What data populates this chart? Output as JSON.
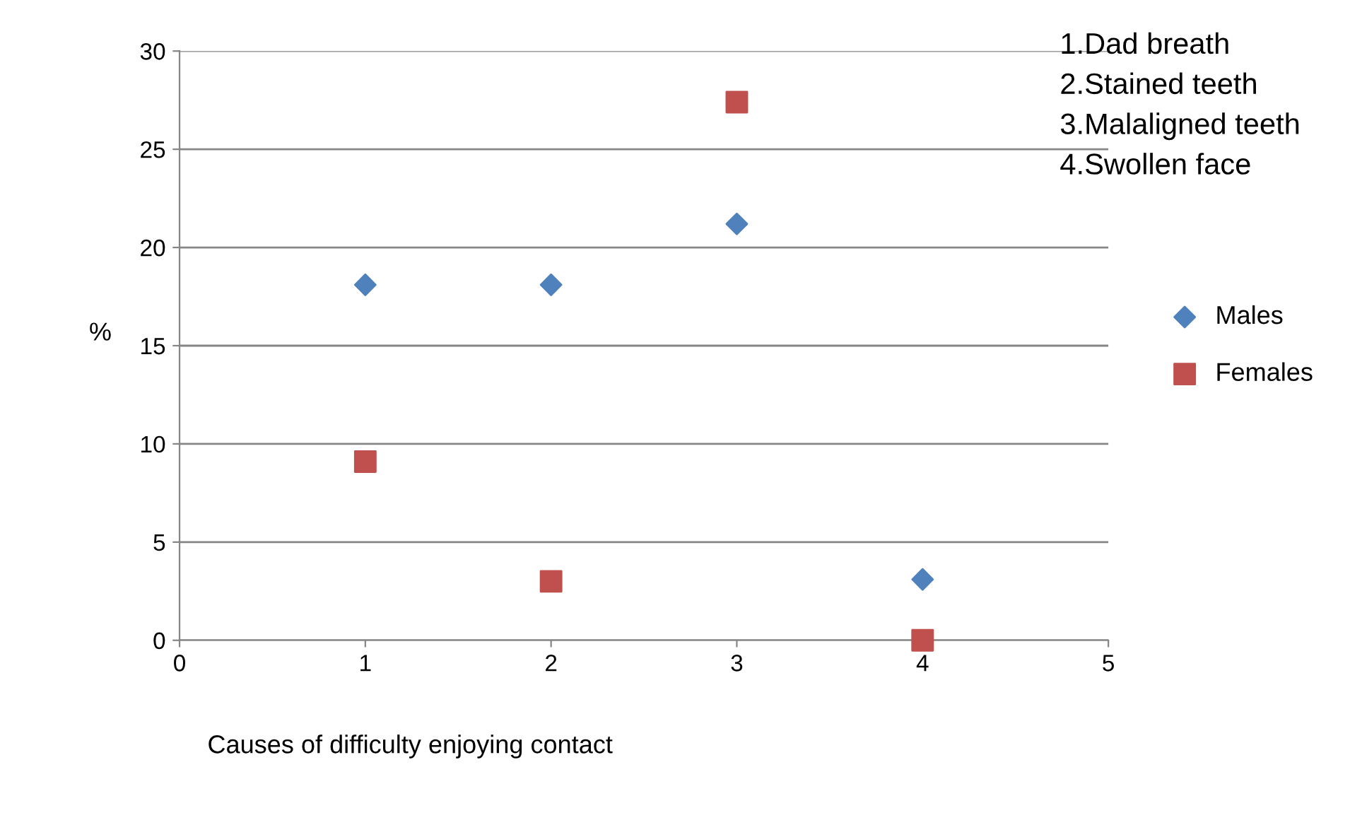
{
  "chart_data": {
    "type": "scatter",
    "xlabel": "Causes of difficulty enjoying contact",
    "ylabel": "%",
    "xlim": [
      0,
      5
    ],
    "xticks": [
      0,
      1,
      2,
      3,
      4,
      5
    ],
    "ylim": [
      0,
      30
    ],
    "yticks": [
      0,
      5,
      10,
      15,
      20,
      25,
      30
    ],
    "grid": "y",
    "legend": "right",
    "series": [
      {
        "name": "Males",
        "color": "#4f81bd",
        "marker": "diamond",
        "x": [
          1,
          2,
          3,
          4
        ],
        "values": [
          18.1,
          18.1,
          21.2,
          3.1
        ]
      },
      {
        "name": "Females",
        "color": "#c0504d",
        "marker": "square",
        "x": [
          1,
          2,
          3,
          4
        ],
        "values": [
          9.1,
          3.0,
          27.4,
          0
        ]
      }
    ],
    "annotations": [
      "1.Dad breath",
      "2.Stained teeth",
      "3.Malaligned teeth",
      "4.Swollen face"
    ]
  }
}
